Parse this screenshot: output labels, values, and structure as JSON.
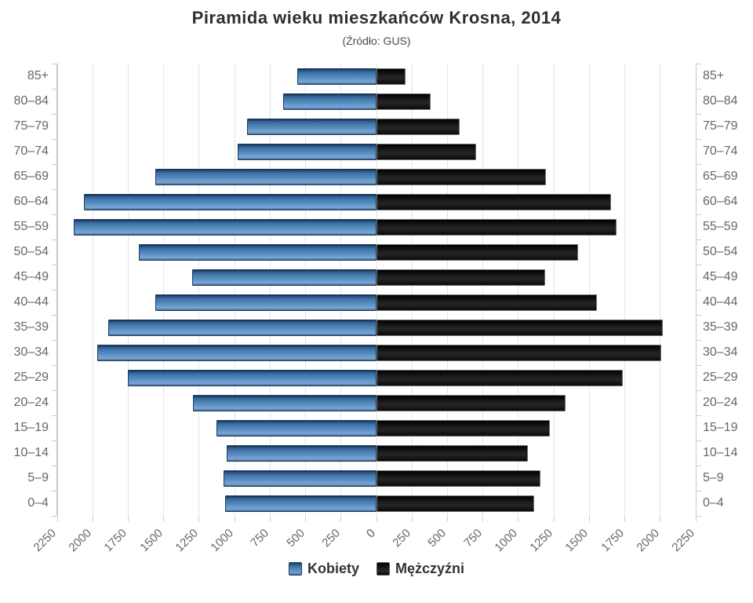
{
  "chart_data": {
    "type": "bar",
    "variant": "population-pyramid",
    "title": "Piramida wieku mieszkańców Krosna, 2014",
    "subtitle": "(Źródło: GUS)",
    "categories": [
      "85+",
      "80–84",
      "75–79",
      "70–74",
      "65–69",
      "60–64",
      "55–59",
      "50–54",
      "45–49",
      "40–44",
      "35–39",
      "30–34",
      "25–29",
      "20–24",
      "15–19",
      "10–14",
      "5–9",
      "0–4"
    ],
    "series": [
      {
        "name": "Kobiety",
        "side": "left",
        "color": "#4d82b8",
        "values": [
          560,
          660,
          910,
          980,
          1560,
          2060,
          2135,
          1675,
          1300,
          1560,
          1890,
          1970,
          1750,
          1295,
          1130,
          1055,
          1080,
          1065
        ]
      },
      {
        "name": "Mężczyźni",
        "side": "right",
        "color": "#111111",
        "values": [
          205,
          380,
          585,
          700,
          1195,
          1655,
          1690,
          1420,
          1190,
          1555,
          2020,
          2005,
          1735,
          1330,
          1220,
          1065,
          1155,
          1110
        ]
      }
    ],
    "xlim": [
      0,
      2250
    ],
    "tick_step": 250,
    "x_ticks_left": [
      "2250",
      "2000",
      "1750",
      "1500",
      "1250",
      "1000",
      "750",
      "500",
      "250",
      "0"
    ],
    "x_ticks_right": [
      "0",
      "250",
      "500",
      "750",
      "1000",
      "1250",
      "1500",
      "1750",
      "2000",
      "2250"
    ],
    "grid": true,
    "legend_position": "bottom",
    "colors": {
      "kobiety": "#4d82b8",
      "mezczyzni": "#111111",
      "gridline": "#e4e4ea",
      "axis": "#c9c9d1",
      "axis_label": "#66666e",
      "title": "#2f2f2f",
      "subtitle": "#4c4c54",
      "legend_text": "#333333"
    }
  }
}
